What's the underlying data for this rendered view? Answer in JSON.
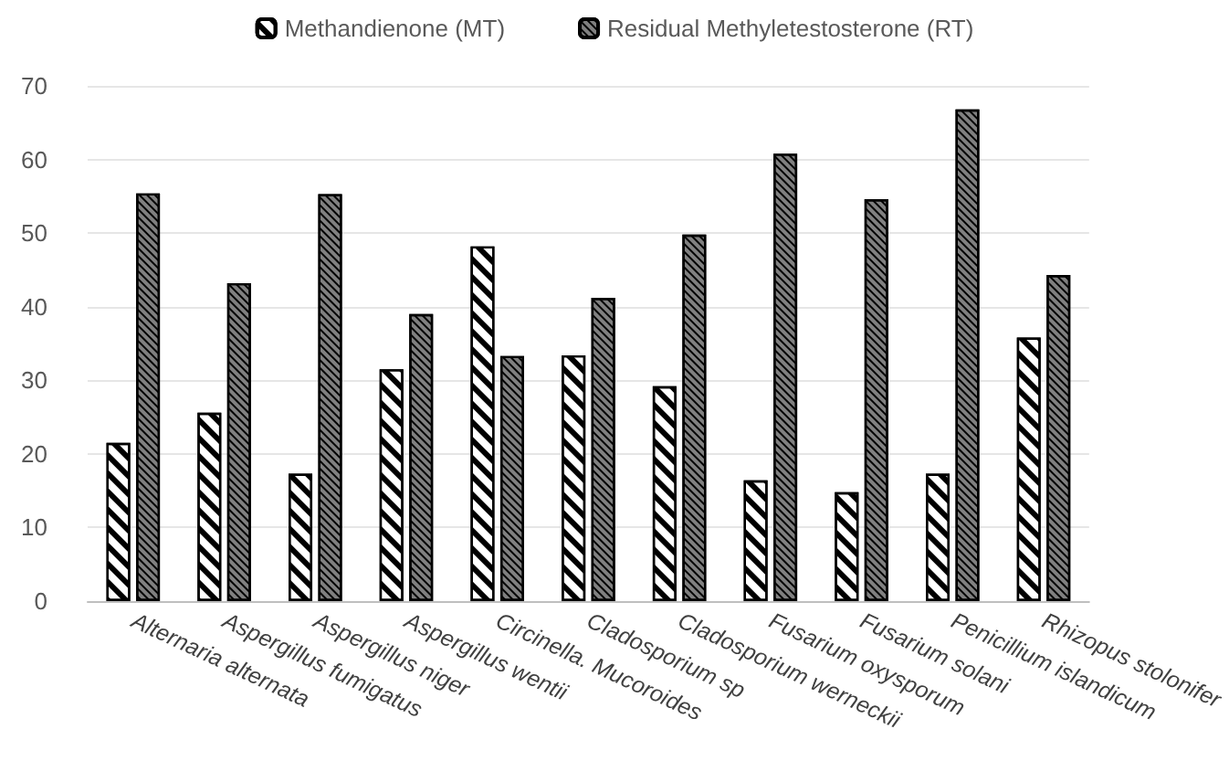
{
  "chart_data": {
    "type": "bar",
    "categories": [
      "Alternaria alternata",
      "Aspergillus fumigatus",
      "Aspergillus niger",
      "Aspergillus wentii",
      "Circinella. Mucoroides",
      "Cladosporium sp",
      "Cladosporium werneckii",
      "Fusarium oxysporum",
      "Fusarium solani",
      "Penicillium islandicum",
      "Rhizopus stolonifer"
    ],
    "series": [
      {
        "name": "Methandienone (MT)",
        "color": "#ffffff",
        "values": [
          21.5,
          25.6,
          17.3,
          31.5,
          48.2,
          33.4,
          29.2,
          16.4,
          14.8,
          17.3,
          35.8
        ]
      },
      {
        "name": "Residual Methyletestosterone (RT)",
        "color": "#808080",
        "values": [
          55.4,
          43.2,
          55.3,
          39.0,
          33.3,
          41.2,
          49.8,
          60.8,
          54.6,
          66.8,
          44.3
        ]
      }
    ],
    "ylim": [
      0,
      70
    ],
    "yticks": [
      0,
      10,
      20,
      30,
      40,
      50,
      60,
      70
    ],
    "grid": "y",
    "legend": "top"
  }
}
